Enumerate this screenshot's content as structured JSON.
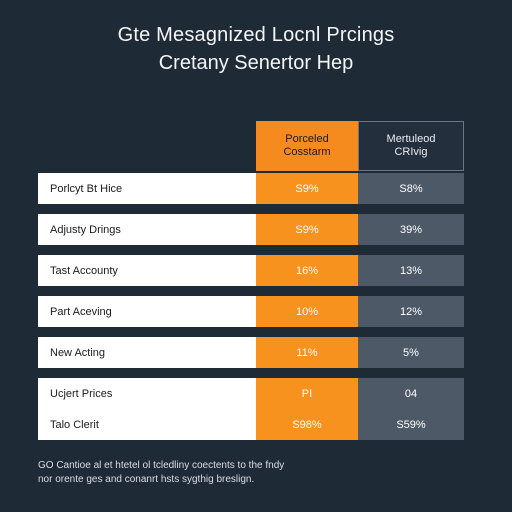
{
  "title": "Gte Mesagnized Locnl Prcings",
  "subtitle": "Cretany Senertor Hep",
  "colors": {
    "background": "#1f2a37",
    "orange_column": "#f7921e",
    "slate_column": "#4d5966",
    "label_cell": "#ffffff"
  },
  "chart_data": {
    "type": "table",
    "columns": [
      {
        "label_line1": "Porceled",
        "label_line2": "Cosstarm"
      },
      {
        "label_line1": "Mertuleod",
        "label_line2": "CRIvig"
      }
    ],
    "rows": [
      {
        "label": "Porlcyt Bt Hice",
        "values": [
          "S9%",
          "S8%"
        ]
      },
      {
        "label": "Adjusty Drings",
        "values": [
          "S9%",
          "39%"
        ]
      },
      {
        "label": "Tast Accounty",
        "values": [
          "16%",
          "13%"
        ]
      },
      {
        "label": "Part Aceving",
        "values": [
          "10%",
          "12%"
        ]
      },
      {
        "label": "New Acting",
        "values": [
          "11%",
          "5%"
        ]
      },
      {
        "label": "Ucjert Prices",
        "values": [
          "PI",
          "04"
        ]
      },
      {
        "label": "Talo Clerit",
        "values": [
          "S98%",
          "S59%"
        ]
      }
    ]
  },
  "footnote": {
    "line1": "GO Cantioe al et htetel ol tcledliny coectents to the fndy",
    "line2": "nor orente ges and conanrt hsts sygthig breslign."
  }
}
